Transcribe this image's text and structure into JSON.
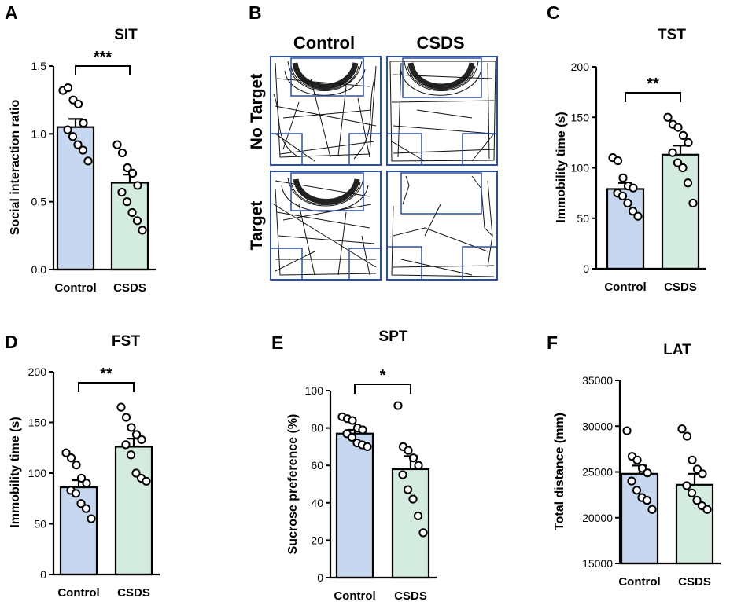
{
  "chart_data": [
    {
      "id": "A",
      "panel": "A",
      "type": "bar",
      "title": "SIT",
      "ylabel": "Social interaction ratio",
      "xlabel": "",
      "categories": [
        "Control",
        "CSDS"
      ],
      "ylim": [
        0,
        1.5
      ],
      "yticks": [
        "0.0",
        "0.5",
        "1.0",
        "1.5"
      ],
      "yticks_values": [
        0,
        0.5,
        1.0,
        1.5
      ],
      "means": [
        1.05,
        0.64
      ],
      "sem": [
        0.06,
        0.06
      ],
      "points": [
        [
          1.32,
          1.34,
          1.25,
          1.22,
          1.08,
          1.03,
          0.98,
          0.92,
          0.88,
          0.8
        ],
        [
          0.92,
          0.86,
          0.75,
          0.71,
          0.62,
          0.57,
          0.5,
          0.42,
          0.36,
          0.29
        ]
      ],
      "significance": "***",
      "colors": [
        "#c7d7ef",
        "#d4ebdf"
      ]
    },
    {
      "id": "C",
      "panel": "C",
      "type": "bar",
      "title": "TST",
      "ylabel": "Immobility time (s)",
      "xlabel": "",
      "categories": [
        "Control",
        "CSDS"
      ],
      "ylim": [
        0,
        200
      ],
      "yticks": [
        "0",
        "50",
        "100",
        "150",
        "200"
      ],
      "yticks_values": [
        0,
        50,
        100,
        150,
        200
      ],
      "means": [
        79,
        113
      ],
      "sem": [
        6,
        9
      ],
      "points": [
        [
          110,
          107,
          90,
          82,
          80,
          75,
          72,
          65,
          57,
          52
        ],
        [
          150,
          143,
          140,
          132,
          125,
          115,
          105,
          100,
          85,
          65
        ]
      ],
      "significance": "**",
      "colors": [
        "#c7d7ef",
        "#d4ebdf"
      ]
    },
    {
      "id": "D",
      "panel": "D",
      "type": "bar",
      "title": "FST",
      "ylabel": "Immobility time (s)",
      "xlabel": "",
      "categories": [
        "Control",
        "CSDS"
      ],
      "ylim": [
        0,
        200
      ],
      "yticks": [
        "0",
        "50",
        "100",
        "150",
        "200"
      ],
      "yticks_values": [
        0,
        50,
        100,
        150,
        200
      ],
      "means": [
        86,
        126
      ],
      "sem": [
        7,
        8
      ],
      "points": [
        [
          120,
          115,
          108,
          95,
          90,
          83,
          80,
          70,
          65,
          55
        ],
        [
          165,
          155,
          145,
          138,
          133,
          128,
          118,
          100,
          95,
          92
        ]
      ],
      "significance": "**",
      "colors": [
        "#c7d7ef",
        "#d4ebdf"
      ]
    },
    {
      "id": "E",
      "panel": "E",
      "type": "bar",
      "title": "SPT",
      "ylabel": "Sucrose preference (%)",
      "xlabel": "",
      "categories": [
        "Control",
        "CSDS"
      ],
      "ylim": [
        0,
        100
      ],
      "yticks": [
        "0",
        "20",
        "40",
        "60",
        "80",
        "100"
      ],
      "yticks_values": [
        0,
        20,
        40,
        60,
        80,
        100
      ],
      "means": [
        77,
        58
      ],
      "sem": [
        2,
        7
      ],
      "points": [
        [
          86,
          85,
          84,
          80,
          79,
          77,
          75,
          72,
          71,
          70
        ],
        [
          92,
          70,
          68,
          64,
          60,
          55,
          47,
          42,
          33,
          24
        ]
      ],
      "significance": "*",
      "colors": [
        "#c7d7ef",
        "#d4ebdf"
      ]
    },
    {
      "id": "F",
      "panel": "F",
      "type": "bar",
      "title": "LAT",
      "ylabel": "Total distance (mm)",
      "xlabel": "",
      "categories": [
        "Control",
        "CSDS"
      ],
      "ylim": [
        15000,
        35000
      ],
      "yticks": [
        "15000",
        "20000",
        "25000",
        "30000",
        "35000"
      ],
      "yticks_values": [
        15000,
        20000,
        25000,
        30000,
        35000
      ],
      "means": [
        24800,
        23600
      ],
      "sem": [
        900,
        1200
      ],
      "points": [
        [
          29500,
          26700,
          26300,
          25400,
          24900,
          24000,
          23000,
          22200,
          21900,
          20900
        ],
        [
          29700,
          28900,
          26300,
          25300,
          24800,
          23500,
          22700,
          21900,
          21300,
          20900
        ]
      ],
      "significance": "",
      "colors": [
        "#c7d7ef",
        "#d4ebdf"
      ]
    }
  ],
  "maze": {
    "panel": "B",
    "columns": [
      "Control",
      "CSDS"
    ],
    "rows": [
      "No Target",
      "Target"
    ],
    "box_color": "#2a4fa8"
  }
}
